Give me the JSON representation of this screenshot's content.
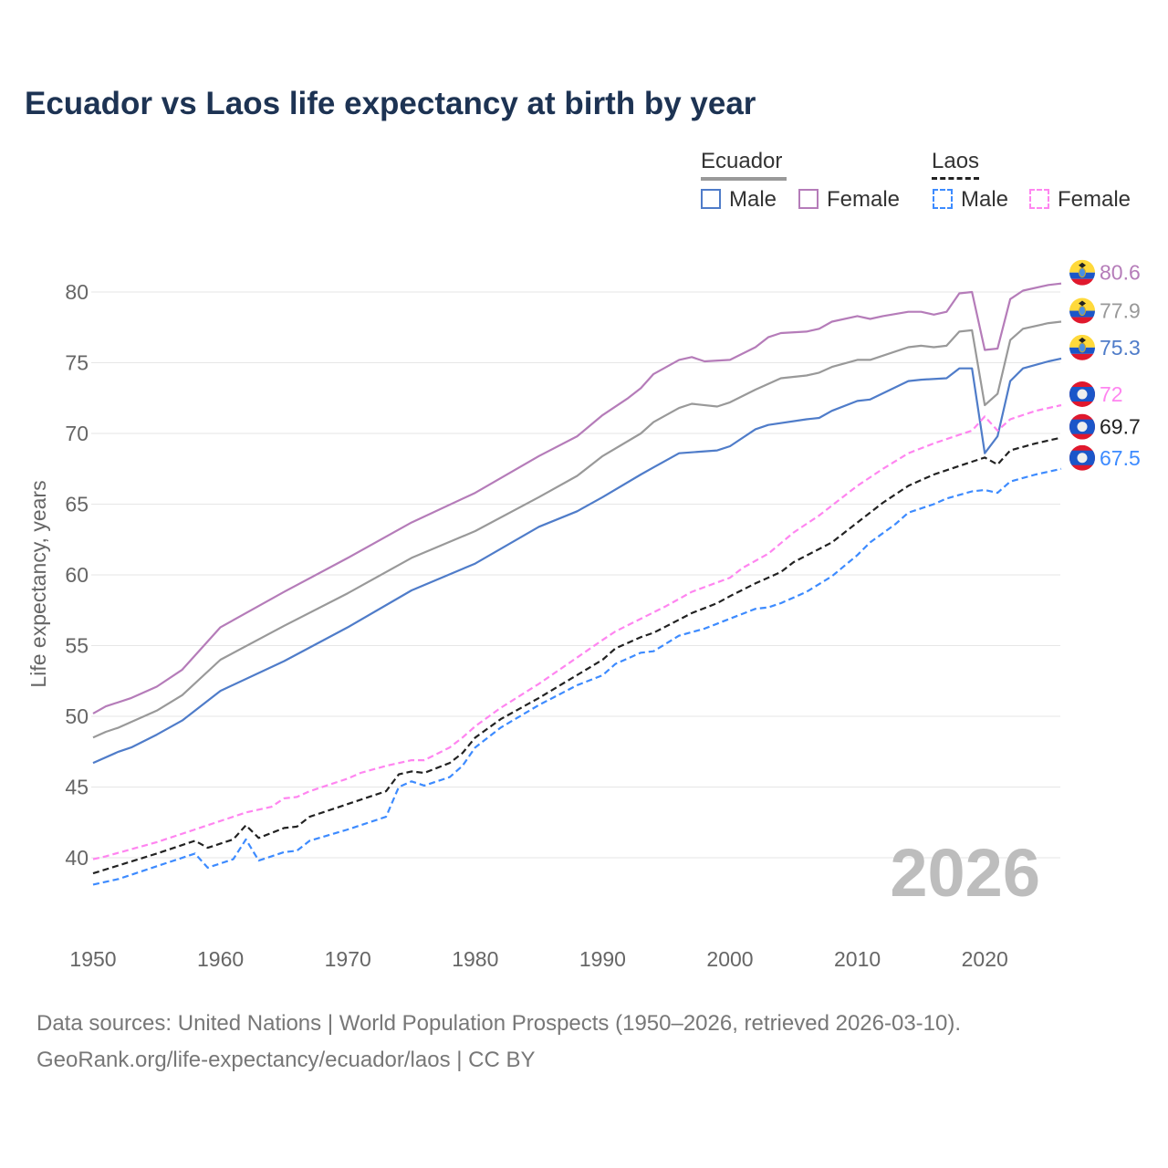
{
  "title": "Ecuador vs Laos life expectancy at birth by year",
  "legend": {
    "groups": [
      {
        "name": "Ecuador",
        "male": "Male",
        "female": "Female"
      },
      {
        "name": "Laos",
        "male": "Male",
        "female": "Female"
      }
    ]
  },
  "footer": {
    "line1": "Data sources: United Nations | World Population Prospects (1950–2026, retrieved 2026-03-10).",
    "line2": "GeoRank.org/life-expectancy/ecuador/laos | CC BY"
  },
  "chart_data": {
    "type": "line",
    "title": "Ecuador vs Laos life expectancy at birth by year",
    "xlabel": "",
    "ylabel": "Life expectancy, years",
    "xlim": [
      1950,
      2026
    ],
    "ylim": [
      36,
      82
    ],
    "xticks": [
      1950,
      1960,
      1970,
      1980,
      1990,
      2000,
      2010,
      2020
    ],
    "yticks": [
      40,
      45,
      50,
      55,
      60,
      65,
      70,
      75,
      80
    ],
    "grid": true,
    "legend_position": "top-right",
    "year_watermark": "2026",
    "series": [
      {
        "name": "Ecuador Female",
        "country": "ecuador",
        "color": "#b57cb9",
        "dashed": false,
        "end_label": "80.6",
        "points": [
          [
            1950,
            50.2
          ],
          [
            1951,
            50.7
          ],
          [
            1953,
            51.3
          ],
          [
            1955,
            52.1
          ],
          [
            1957,
            53.3
          ],
          [
            1960,
            56.3
          ],
          [
            1965,
            58.8
          ],
          [
            1970,
            61.2
          ],
          [
            1975,
            63.7
          ],
          [
            1980,
            65.8
          ],
          [
            1985,
            68.4
          ],
          [
            1988,
            69.8
          ],
          [
            1990,
            71.3
          ],
          [
            1992,
            72.5
          ],
          [
            1993,
            73.2
          ],
          [
            1994,
            74.2
          ],
          [
            1996,
            75.2
          ],
          [
            1997,
            75.4
          ],
          [
            1998,
            75.1
          ],
          [
            2000,
            75.2
          ],
          [
            2002,
            76.1
          ],
          [
            2003,
            76.8
          ],
          [
            2004,
            77.1
          ],
          [
            2006,
            77.2
          ],
          [
            2007,
            77.4
          ],
          [
            2008,
            77.9
          ],
          [
            2010,
            78.3
          ],
          [
            2011,
            78.1
          ],
          [
            2012,
            78.3
          ],
          [
            2014,
            78.6
          ],
          [
            2015,
            78.6
          ],
          [
            2016,
            78.4
          ],
          [
            2017,
            78.6
          ],
          [
            2018,
            79.9
          ],
          [
            2019,
            80.0
          ],
          [
            2020,
            75.9
          ],
          [
            2021,
            76.0
          ],
          [
            2022,
            79.5
          ],
          [
            2023,
            80.1
          ],
          [
            2025,
            80.5
          ],
          [
            2026,
            80.6
          ]
        ]
      },
      {
        "name": "Ecuador",
        "country": "ecuador",
        "color": "#999999",
        "dashed": false,
        "end_label": "77.9",
        "points": [
          [
            1950,
            48.5
          ],
          [
            1951,
            48.9
          ],
          [
            1952,
            49.2
          ],
          [
            1955,
            50.4
          ],
          [
            1957,
            51.5
          ],
          [
            1960,
            54.0
          ],
          [
            1965,
            56.4
          ],
          [
            1970,
            58.7
          ],
          [
            1975,
            61.2
          ],
          [
            1980,
            63.1
          ],
          [
            1985,
            65.5
          ],
          [
            1988,
            67.0
          ],
          [
            1990,
            68.4
          ],
          [
            1993,
            70.0
          ],
          [
            1994,
            70.8
          ],
          [
            1996,
            71.8
          ],
          [
            1997,
            72.1
          ],
          [
            1999,
            71.9
          ],
          [
            2000,
            72.2
          ],
          [
            2002,
            73.1
          ],
          [
            2004,
            73.9
          ],
          [
            2006,
            74.1
          ],
          [
            2007,
            74.3
          ],
          [
            2008,
            74.7
          ],
          [
            2010,
            75.2
          ],
          [
            2011,
            75.2
          ],
          [
            2014,
            76.1
          ],
          [
            2015,
            76.2
          ],
          [
            2016,
            76.1
          ],
          [
            2017,
            76.2
          ],
          [
            2018,
            77.2
          ],
          [
            2019,
            77.3
          ],
          [
            2020,
            72.0
          ],
          [
            2021,
            72.8
          ],
          [
            2022,
            76.6
          ],
          [
            2023,
            77.4
          ],
          [
            2025,
            77.8
          ],
          [
            2026,
            77.9
          ]
        ]
      },
      {
        "name": "Ecuador Male",
        "country": "ecuador",
        "color": "#4f7cc9",
        "dashed": false,
        "end_label": "75.3",
        "points": [
          [
            1950,
            46.7
          ],
          [
            1952,
            47.5
          ],
          [
            1953,
            47.8
          ],
          [
            1955,
            48.7
          ],
          [
            1957,
            49.7
          ],
          [
            1960,
            51.8
          ],
          [
            1965,
            53.9
          ],
          [
            1970,
            56.3
          ],
          [
            1975,
            58.9
          ],
          [
            1980,
            60.8
          ],
          [
            1985,
            63.4
          ],
          [
            1988,
            64.5
          ],
          [
            1990,
            65.5
          ],
          [
            1993,
            67.1
          ],
          [
            1994,
            67.6
          ],
          [
            1996,
            68.6
          ],
          [
            1999,
            68.8
          ],
          [
            2000,
            69.1
          ],
          [
            2002,
            70.3
          ],
          [
            2003,
            70.6
          ],
          [
            2006,
            71.0
          ],
          [
            2007,
            71.1
          ],
          [
            2008,
            71.6
          ],
          [
            2010,
            72.3
          ],
          [
            2011,
            72.4
          ],
          [
            2014,
            73.7
          ],
          [
            2015,
            73.8
          ],
          [
            2017,
            73.9
          ],
          [
            2018,
            74.6
          ],
          [
            2019,
            74.6
          ],
          [
            2020,
            68.6
          ],
          [
            2021,
            69.8
          ],
          [
            2022,
            73.7
          ],
          [
            2023,
            74.6
          ],
          [
            2025,
            75.1
          ],
          [
            2026,
            75.3
          ]
        ]
      },
      {
        "name": "Laos Female",
        "country": "laos",
        "color": "#ff85f0",
        "dashed": true,
        "end_label": "72",
        "points": [
          [
            1950,
            39.9
          ],
          [
            1951,
            40.1
          ],
          [
            1955,
            41.1
          ],
          [
            1958,
            42.0
          ],
          [
            1960,
            42.6
          ],
          [
            1962,
            43.2
          ],
          [
            1964,
            43.6
          ],
          [
            1965,
            44.2
          ],
          [
            1966,
            44.3
          ],
          [
            1967,
            44.7
          ],
          [
            1970,
            45.6
          ],
          [
            1971,
            46.0
          ],
          [
            1973,
            46.5
          ],
          [
            1975,
            46.9
          ],
          [
            1976,
            46.9
          ],
          [
            1978,
            47.8
          ],
          [
            1979,
            48.5
          ],
          [
            1980,
            49.3
          ],
          [
            1982,
            50.6
          ],
          [
            1985,
            52.3
          ],
          [
            1990,
            55.4
          ],
          [
            1991,
            56.0
          ],
          [
            1995,
            57.8
          ],
          [
            1997,
            58.8
          ],
          [
            2000,
            59.8
          ],
          [
            2001,
            60.5
          ],
          [
            2003,
            61.5
          ],
          [
            2005,
            63.0
          ],
          [
            2007,
            64.2
          ],
          [
            2008,
            64.9
          ],
          [
            2010,
            66.3
          ],
          [
            2012,
            67.5
          ],
          [
            2014,
            68.6
          ],
          [
            2016,
            69.3
          ],
          [
            2018,
            69.9
          ],
          [
            2019,
            70.2
          ],
          [
            2020,
            71.2
          ],
          [
            2021,
            70.2
          ],
          [
            2022,
            71.0
          ],
          [
            2024,
            71.6
          ],
          [
            2026,
            72.0
          ]
        ]
      },
      {
        "name": "Laos",
        "country": "laos",
        "color": "#222222",
        "dashed": true,
        "end_label": "69.7",
        "points": [
          [
            1950,
            38.9
          ],
          [
            1955,
            40.3
          ],
          [
            1958,
            41.2
          ],
          [
            1959,
            40.7
          ],
          [
            1961,
            41.3
          ],
          [
            1962,
            42.3
          ],
          [
            1963,
            41.4
          ],
          [
            1965,
            42.1
          ],
          [
            1966,
            42.2
          ],
          [
            1967,
            42.9
          ],
          [
            1970,
            43.8
          ],
          [
            1973,
            44.7
          ],
          [
            1974,
            45.9
          ],
          [
            1975,
            46.1
          ],
          [
            1976,
            46.0
          ],
          [
            1978,
            46.7
          ],
          [
            1979,
            47.4
          ],
          [
            1980,
            48.5
          ],
          [
            1982,
            49.8
          ],
          [
            1985,
            51.3
          ],
          [
            1990,
            54.0
          ],
          [
            1991,
            54.8
          ],
          [
            1993,
            55.6
          ],
          [
            1994,
            55.9
          ],
          [
            1997,
            57.3
          ],
          [
            1999,
            58.0
          ],
          [
            2000,
            58.5
          ],
          [
            2002,
            59.4
          ],
          [
            2004,
            60.2
          ],
          [
            2005,
            60.9
          ],
          [
            2008,
            62.3
          ],
          [
            2010,
            63.7
          ],
          [
            2012,
            65.1
          ],
          [
            2014,
            66.3
          ],
          [
            2016,
            67.1
          ],
          [
            2019,
            68.0
          ],
          [
            2020,
            68.3
          ],
          [
            2021,
            67.8
          ],
          [
            2022,
            68.8
          ],
          [
            2024,
            69.3
          ],
          [
            2026,
            69.7
          ]
        ]
      },
      {
        "name": "Laos Male",
        "country": "laos",
        "color": "#3d8bff",
        "dashed": true,
        "end_label": "67.5",
        "points": [
          [
            1950,
            38.1
          ],
          [
            1952,
            38.5
          ],
          [
            1955,
            39.4
          ],
          [
            1958,
            40.3
          ],
          [
            1959,
            39.3
          ],
          [
            1961,
            39.9
          ],
          [
            1962,
            41.3
          ],
          [
            1963,
            39.8
          ],
          [
            1965,
            40.4
          ],
          [
            1966,
            40.5
          ],
          [
            1967,
            41.2
          ],
          [
            1970,
            42.0
          ],
          [
            1973,
            42.9
          ],
          [
            1974,
            45.0
          ],
          [
            1975,
            45.4
          ],
          [
            1976,
            45.1
          ],
          [
            1978,
            45.7
          ],
          [
            1979,
            46.5
          ],
          [
            1980,
            47.8
          ],
          [
            1982,
            49.2
          ],
          [
            1985,
            50.8
          ],
          [
            1988,
            52.2
          ],
          [
            1990,
            52.9
          ],
          [
            1991,
            53.7
          ],
          [
            1993,
            54.5
          ],
          [
            1994,
            54.6
          ],
          [
            1996,
            55.7
          ],
          [
            1998,
            56.2
          ],
          [
            2000,
            56.9
          ],
          [
            2002,
            57.6
          ],
          [
            2003,
            57.7
          ],
          [
            2004,
            58.0
          ],
          [
            2006,
            58.8
          ],
          [
            2008,
            59.9
          ],
          [
            2010,
            61.4
          ],
          [
            2011,
            62.3
          ],
          [
            2013,
            63.6
          ],
          [
            2014,
            64.4
          ],
          [
            2016,
            65.0
          ],
          [
            2017,
            65.4
          ],
          [
            2019,
            65.9
          ],
          [
            2020,
            66.0
          ],
          [
            2021,
            65.8
          ],
          [
            2022,
            66.6
          ],
          [
            2024,
            67.1
          ],
          [
            2026,
            67.5
          ]
        ]
      }
    ]
  }
}
